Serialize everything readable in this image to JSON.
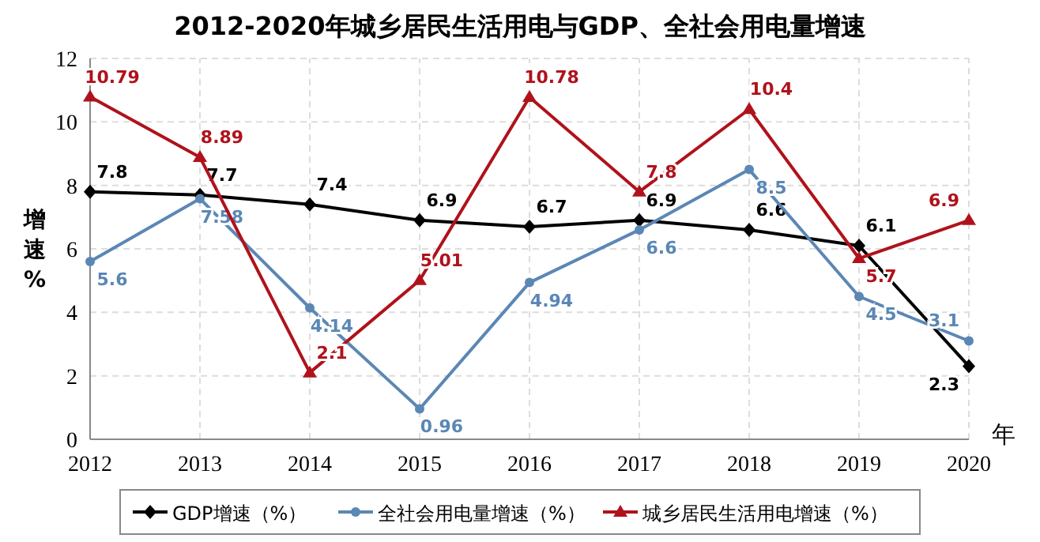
{
  "chart_data": {
    "type": "line",
    "title": "2012-2020年城乡居民生活用电与GDP、全社会用电量增速",
    "xlabel": "年",
    "ylabel": "增速%",
    "categories": [
      "2012",
      "2013",
      "2014",
      "2015",
      "2016",
      "2017",
      "2018",
      "2019",
      "2020"
    ],
    "series": [
      {
        "name": "GDP增速（%）",
        "color": "#000000",
        "marker": "diamond",
        "values": [
          7.8,
          7.7,
          7.4,
          6.9,
          6.7,
          6.9,
          6.6,
          6.1,
          2.3
        ]
      },
      {
        "name": "全社会用电量增速（%）",
        "color": "#5b87b5",
        "marker": "circle",
        "values": [
          5.6,
          7.58,
          4.14,
          0.96,
          4.94,
          6.6,
          8.5,
          4.5,
          3.1
        ]
      },
      {
        "name": "城乡居民生活用电增速（%）",
        "color": "#b0121b",
        "marker": "triangle",
        "values": [
          10.79,
          8.89,
          2.1,
          5.01,
          10.78,
          7.8,
          10.4,
          5.7,
          6.9
        ]
      }
    ],
    "ylim": [
      0,
      12
    ],
    "yticks": [
      0,
      2,
      4,
      6,
      8,
      10,
      12
    ],
    "grid": true,
    "legend": "bottom",
    "data_labels": true,
    "line_style": "solid"
  }
}
